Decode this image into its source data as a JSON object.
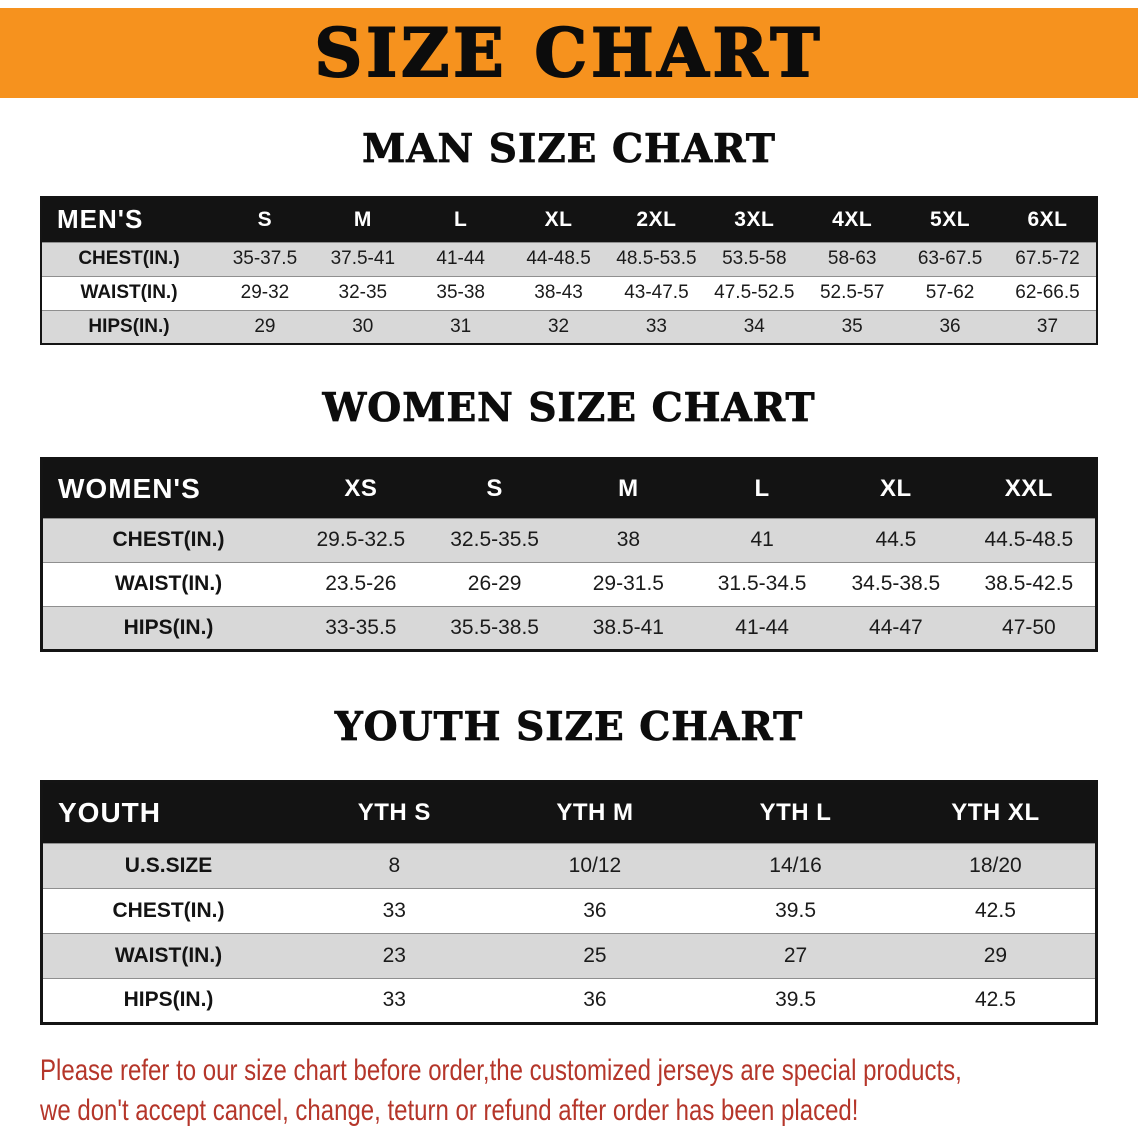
{
  "banner": {
    "title": "SIZE CHART"
  },
  "colors": {
    "banner_bg": "#F6921E",
    "header_bg": "#131313",
    "stripe": "#d8d8d8",
    "disclaimer": "#b5362a"
  },
  "sections": {
    "men": {
      "heading": "MAN SIZE CHART",
      "table": {
        "header_label": "MEN'S",
        "columns": [
          "S",
          "M",
          "L",
          "XL",
          "2XL",
          "3XL",
          "4XL",
          "5XL",
          "6XL"
        ],
        "rows": [
          {
            "label": "CHEST(IN.)",
            "values": [
              "35-37.5",
              "37.5-41",
              "41-44",
              "44-48.5",
              "48.5-53.5",
              "53.5-58",
              "58-63",
              "63-67.5",
              "67.5-72"
            ]
          },
          {
            "label": "WAIST(IN.)",
            "values": [
              "29-32",
              "32-35",
              "35-38",
              "38-43",
              "43-47.5",
              "47.5-52.5",
              "52.5-57",
              "57-62",
              "62-66.5"
            ]
          },
          {
            "label": "HIPS(IN.)",
            "values": [
              "29",
              "30",
              "31",
              "32",
              "33",
              "34",
              "35",
              "36",
              "37"
            ]
          }
        ]
      }
    },
    "women": {
      "heading": "WOMEN SIZE CHART",
      "table": {
        "header_label": "WOMEN'S",
        "columns": [
          "XS",
          "S",
          "M",
          "L",
          "XL",
          "XXL"
        ],
        "rows": [
          {
            "label": "CHEST(IN.)",
            "values": [
              "29.5-32.5",
              "32.5-35.5",
              "38",
              "41",
              "44.5",
              "44.5-48.5"
            ]
          },
          {
            "label": "WAIST(IN.)",
            "values": [
              "23.5-26",
              "26-29",
              "29-31.5",
              "31.5-34.5",
              "34.5-38.5",
              "38.5-42.5"
            ]
          },
          {
            "label": "HIPS(IN.)",
            "values": [
              "33-35.5",
              "35.5-38.5",
              "38.5-41",
              "41-44",
              "44-47",
              "47-50"
            ]
          }
        ]
      }
    },
    "youth": {
      "heading": "YOUTH SIZE CHART",
      "table": {
        "header_label": "YOUTH",
        "columns": [
          "YTH S",
          "YTH M",
          "YTH L",
          "YTH XL"
        ],
        "rows": [
          {
            "label": "U.S.SIZE",
            "values": [
              "8",
              "10/12",
              "14/16",
              "18/20"
            ]
          },
          {
            "label": "CHEST(IN.)",
            "values": [
              "33",
              "36",
              "39.5",
              "42.5"
            ]
          },
          {
            "label": "WAIST(IN.)",
            "values": [
              "23",
              "25",
              "27",
              "29"
            ]
          },
          {
            "label": "HIPS(IN.)",
            "values": [
              "33",
              "36",
              "39.5",
              "42.5"
            ]
          }
        ]
      }
    }
  },
  "disclaimer": {
    "line1": "Please refer to our size chart before order,the customized jerseys are special products,",
    "line2": "we don't accept cancel, change, teturn or refund after order has been placed!"
  }
}
